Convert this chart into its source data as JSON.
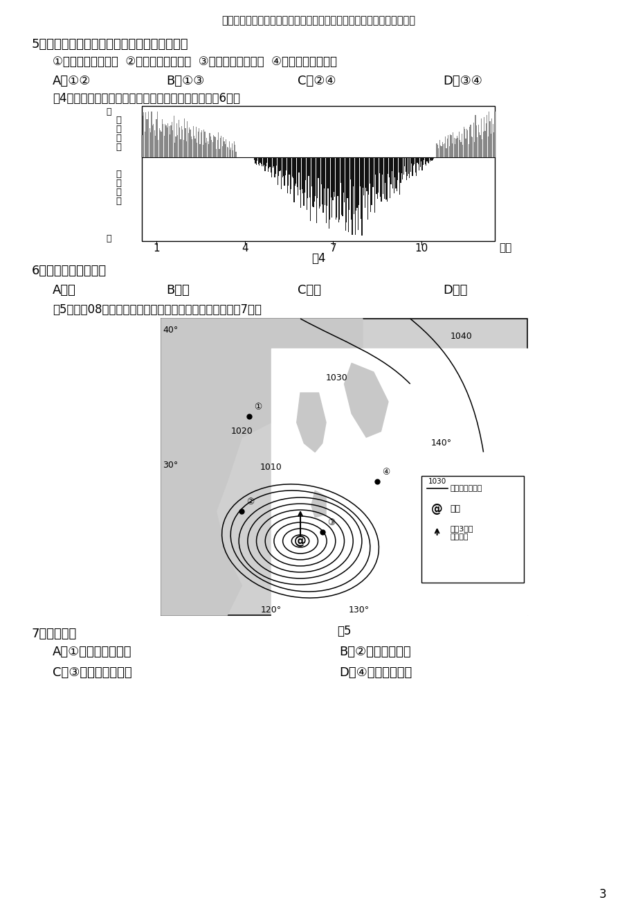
{
  "page_bg": "#ffffff",
  "header_text": "北京升学圈独家整理，关注微信公众号：北京升学圈，获取更多升学资料",
  "q5_title": "5．长江三角洲区域一体化发展可以促进该区域",
  "q5_options": "①乡镇数量明显增多  ②城市服务功能增强  ③第三产业结构趋同  ④工业地域联系紧密",
  "q5_choices": [
    "A．①②",
    "B．①③",
    "C．②④",
    "D．③④"
  ],
  "fig4_caption": "图4是中国某机场空调耗能变化示意图。读图，回答第6题。",
  "fig4_ylabel_top": "高",
  "fig4_ylabel_heat": "制\n热\n耗\n能",
  "fig4_ylabel_cool": "制\n冷\n耗\n能",
  "fig4_ylabel_bottom": "高",
  "fig4_xlabel": "月份",
  "fig4_xticks": [
    1,
    4,
    7,
    10
  ],
  "fig4_label": "图4",
  "q6_title": "6．该机场最可能位于",
  "q6_choices": [
    "A．黑",
    "B．青",
    "C．港",
    "D．黔"
  ],
  "fig5_caption": "图5为某日08时亚洲局部海平面气压分布图。读图，回答第7题。",
  "fig5_label": "图5",
  "q7_title": "7．图示区域",
  "q7_choices_left": [
    "A．①地的风向为东南",
    "C．③地未来有强降水"
  ],
  "q7_choices_right": [
    "B．②地有大雾出现",
    "D．④地寒暖流交汇"
  ],
  "page_number": "3"
}
